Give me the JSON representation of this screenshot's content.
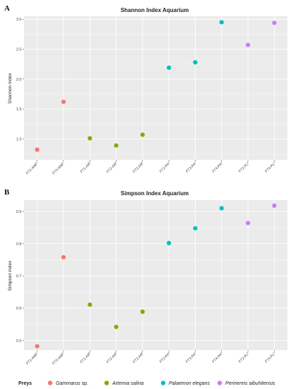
{
  "colors": {
    "Gammarus": "#F8766D",
    "Artemia": "#7CAE00",
    "Palaemon": "#00BFC4",
    "Perinereis": "#C77CFF",
    "panel_bg": "#EBEBEB",
    "grid": "#FFFFFF"
  },
  "chart_data": [
    {
      "type": "scatter",
      "panel_label": "A",
      "title": "Shannon Index Aquarium",
      "xlabel": "",
      "ylabel": "Shannon index",
      "ylim": [
        0.65,
        3.05
      ],
      "yticks": [
        1.0,
        1.5,
        2.0,
        2.5,
        3.0
      ],
      "ytick_labels": [
        "1.0",
        "1.5",
        "2.0",
        "2.5",
        "3.0"
      ],
      "grid": true,
      "categories": [
        "FT2-ANF",
        "FT3-ANF",
        "FT1-AR",
        "FT2-AR",
        "FT3-AR",
        "FT2-PA",
        "FT3-PA",
        "FT4-PA",
        "FT2-PL",
        "FT4-PL"
      ],
      "category_labels": [
        "FT2-ANF",
        "FT3-ANF",
        "FT1-AR",
        "FT2-AR",
        "FT3-AR",
        "FT2-PA",
        "FT3-PA",
        "FT4-PA",
        "FT2-PL",
        "FT4-PL"
      ],
      "category_superscripts": [
        "c",
        "c",
        "b",
        "b",
        "b",
        "a",
        "a",
        "a",
        "a",
        "a"
      ],
      "values": [
        0.82,
        1.62,
        1.01,
        0.89,
        1.07,
        2.19,
        2.28,
        2.95,
        2.57,
        2.94
      ],
      "groups": [
        "Gammarus",
        "Gammarus",
        "Artemia",
        "Artemia",
        "Artemia",
        "Palaemon",
        "Palaemon",
        "Palaemon",
        "Perinereis",
        "Perinereis"
      ]
    },
    {
      "type": "scatter",
      "panel_label": "B",
      "title": "Simpson Index Aquarium",
      "xlabel": "",
      "ylabel": "Simpson index",
      "ylim": [
        0.47,
        0.935
      ],
      "yticks": [
        0.5,
        0.6,
        0.7,
        0.8,
        0.9
      ],
      "ytick_labels": [
        "0.5",
        "0.6",
        "0.7",
        "0.8",
        "0.9"
      ],
      "grid": true,
      "categories": [
        "FT2-ANF",
        "FT3-ANF",
        "FT1-AR",
        "FT2-AR",
        "FT3-AR",
        "FT2-PA",
        "FT3-PA",
        "FT4-PA",
        "FT2-PL",
        "FT4-PL"
      ],
      "category_labels": [
        "FT2-ANF",
        "FT3-ANF",
        "FT1-AR",
        "FT2-AR",
        "FT3-AR",
        "FT2-PA",
        "FT3-PA",
        "FT4-PA",
        "FT2-PL",
        "FT4-PL"
      ],
      "category_superscripts": [
        "c",
        "c",
        "b",
        "b",
        "b",
        "a",
        "a",
        "a",
        "a",
        "a"
      ],
      "values": [
        0.482,
        0.758,
        0.611,
        0.542,
        0.589,
        0.802,
        0.848,
        0.91,
        0.864,
        0.918
      ],
      "groups": [
        "Gammarus",
        "Gammarus",
        "Artemia",
        "Artemia",
        "Artemia",
        "Palaemon",
        "Palaemon",
        "Palaemon",
        "Perinereis",
        "Perinereis"
      ]
    }
  ],
  "legend": {
    "title": "Preys",
    "placement": "bottom",
    "items": [
      {
        "key": "Gammarus",
        "label": "Gammarus sp."
      },
      {
        "key": "Artemia",
        "label": "Artemia salina"
      },
      {
        "key": "Palaemon",
        "label": "Palaemon elegans"
      },
      {
        "key": "Perinereis",
        "label": "Perinereis aibuhitensis"
      }
    ]
  }
}
